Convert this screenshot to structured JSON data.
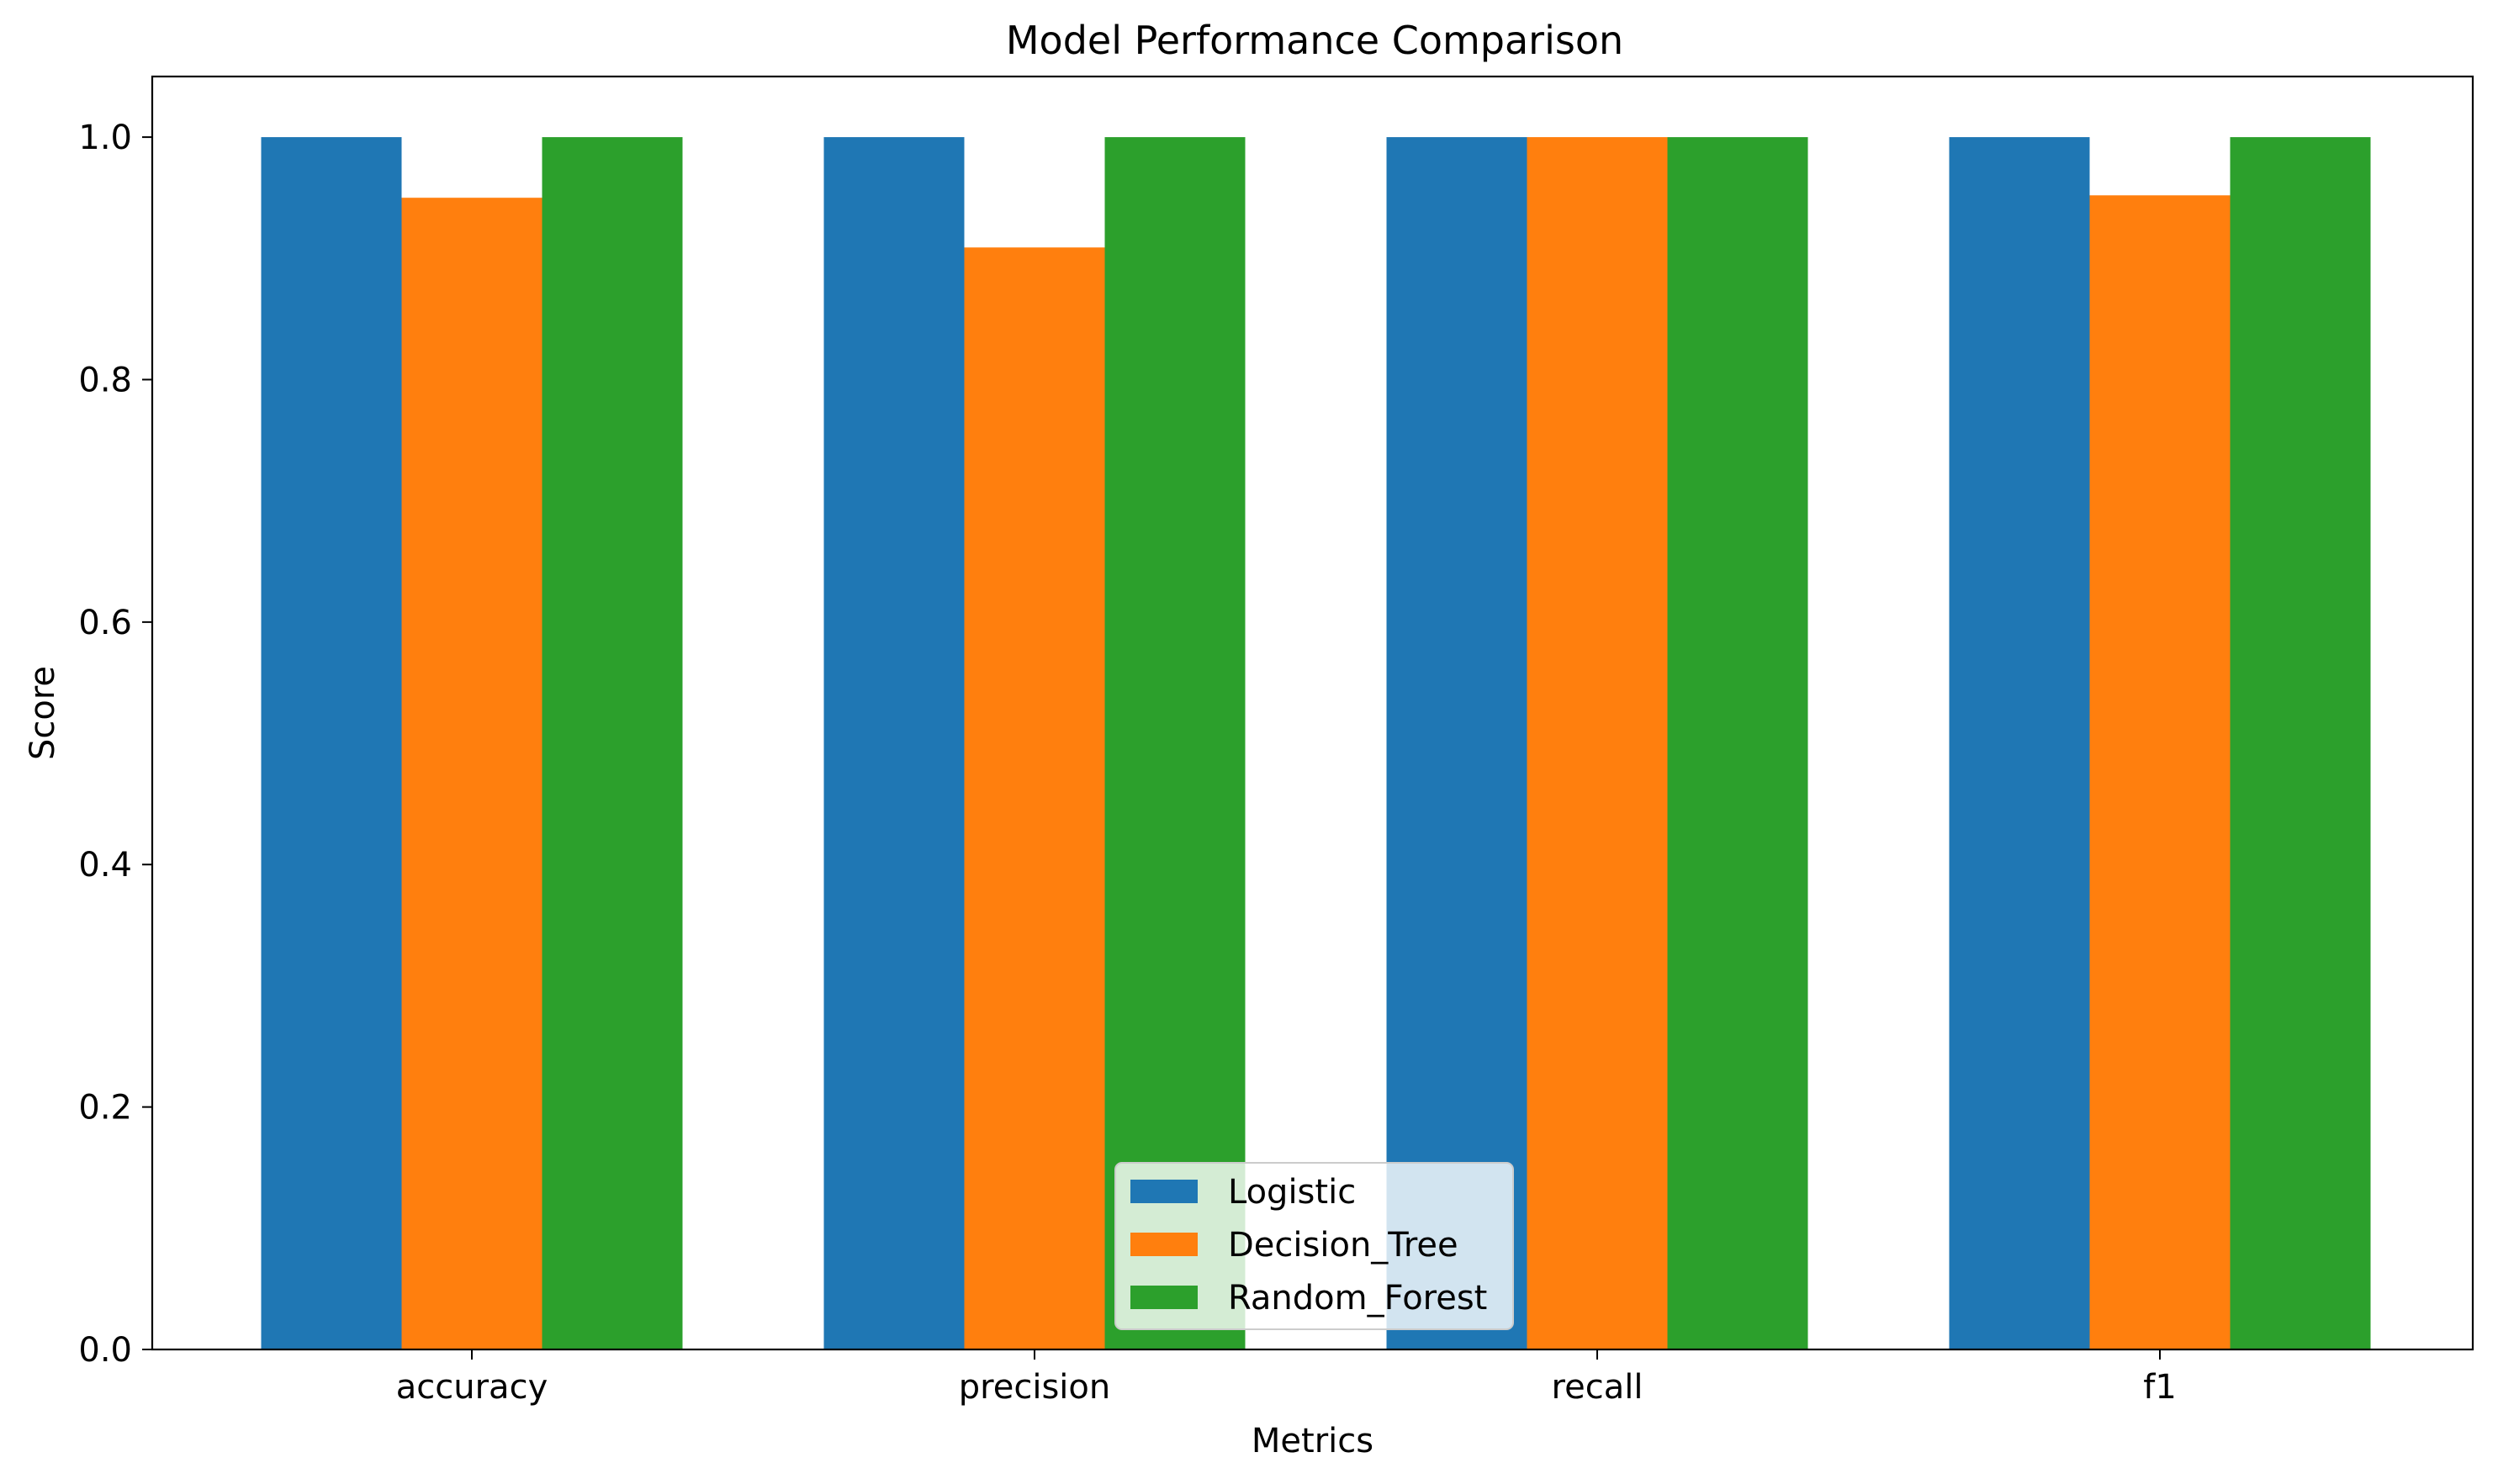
{
  "chart_data": {
    "type": "bar",
    "title": "Model Performance Comparison",
    "xlabel": "Metrics",
    "ylabel": "Score",
    "categories": [
      "accuracy",
      "precision",
      "recall",
      "f1"
    ],
    "series": [
      {
        "name": "Logistic",
        "color": "#1f77b4",
        "values": [
          1.0,
          1.0,
          1.0,
          1.0
        ]
      },
      {
        "name": "Decision_Tree",
        "color": "#ff7f0e",
        "values": [
          0.95,
          0.909,
          1.0,
          0.952
        ]
      },
      {
        "name": "Random_Forest",
        "color": "#2ca02c",
        "values": [
          1.0,
          1.0,
          1.0,
          1.0
        ]
      }
    ],
    "ylim": [
      0,
      1.05
    ],
    "yticks": [
      "0.0",
      "0.2",
      "0.4",
      "0.6",
      "0.8",
      "1.0"
    ],
    "grid": false,
    "legend_position": "bottom-center"
  }
}
